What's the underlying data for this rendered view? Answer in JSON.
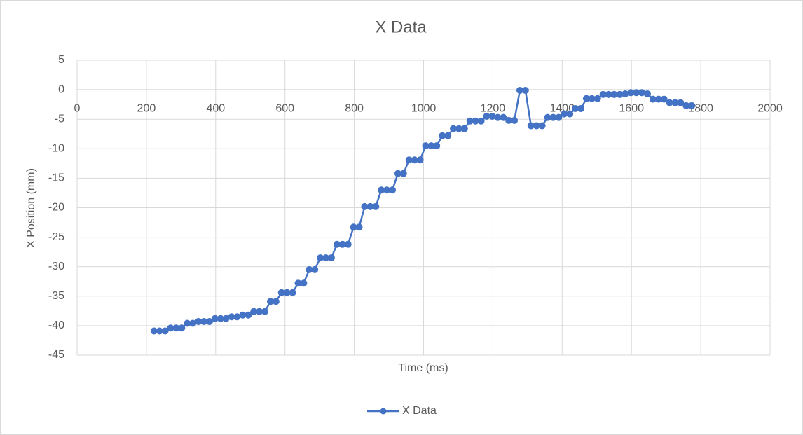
{
  "chart_data": {
    "type": "scatter-line",
    "title": "X Data",
    "x_label": "Time (ms)",
    "y_label": "X Position (mm)",
    "x": [
      222,
      238,
      254,
      270,
      286,
      302,
      318,
      334,
      350,
      366,
      382,
      398,
      414,
      430,
      446,
      462,
      478,
      494,
      510,
      526,
      542,
      558,
      574,
      590,
      606,
      622,
      638,
      654,
      670,
      686,
      702,
      718,
      734,
      750,
      766,
      782,
      798,
      814,
      830,
      846,
      862,
      878,
      894,
      910,
      926,
      942,
      958,
      974,
      990,
      1006,
      1022,
      1038,
      1054,
      1070,
      1086,
      1102,
      1118,
      1134,
      1150,
      1166,
      1182,
      1198,
      1214,
      1230,
      1246,
      1262,
      1278,
      1294,
      1310,
      1326,
      1342,
      1358,
      1374,
      1390,
      1406,
      1422,
      1438,
      1454,
      1470,
      1486,
      1502,
      1518,
      1534,
      1550,
      1566,
      1582,
      1598,
      1614,
      1630,
      1646,
      1662,
      1678,
      1694,
      1710,
      1726,
      1742,
      1758,
      1774
    ],
    "series": [
      {
        "name": "X Data",
        "color": "#4472c4",
        "values": [
          -40.9,
          -40.9,
          -40.9,
          -40.4,
          -40.4,
          -40.4,
          -39.6,
          -39.6,
          -39.3,
          -39.3,
          -39.3,
          -38.8,
          -38.8,
          -38.8,
          -38.5,
          -38.5,
          -38.2,
          -38.2,
          -37.6,
          -37.6,
          -37.6,
          -35.9,
          -35.9,
          -34.4,
          -34.4,
          -34.4,
          -32.8,
          -32.8,
          -30.5,
          -30.5,
          -28.5,
          -28.5,
          -28.5,
          -26.2,
          -26.2,
          -26.2,
          -23.3,
          -23.3,
          -19.8,
          -19.8,
          -19.8,
          -17,
          -17,
          -17,
          -14.2,
          -14.2,
          -11.9,
          -11.9,
          -11.9,
          -9.5,
          -9.5,
          -9.5,
          -7.8,
          -7.8,
          -6.6,
          -6.6,
          -6.6,
          -5.3,
          -5.3,
          -5.3,
          -4.5,
          -4.5,
          -4.7,
          -4.7,
          -5.2,
          -5.2,
          -0.1,
          -0.1,
          -6.1,
          -6.1,
          -6.1,
          -4.7,
          -4.7,
          -4.7,
          -4.1,
          -4.1,
          -3.2,
          -3.2,
          -1.5,
          -1.5,
          -1.5,
          -0.8,
          -0.8,
          -0.8,
          -0.8,
          -0.7,
          -0.5,
          -0.5,
          -0.5,
          -0.7,
          -1.6,
          -1.6,
          -1.6,
          -2.2,
          -2.2,
          -2.2,
          -2.7,
          -2.7
        ]
      }
    ],
    "xlim": [
      0,
      2000
    ],
    "xticks": [
      0,
      200,
      400,
      600,
      800,
      1000,
      1200,
      1400,
      1600,
      1800,
      2000
    ],
    "ylim": [
      -45,
      5
    ],
    "yticks": [
      5,
      0,
      -5,
      -10,
      -15,
      -20,
      -25,
      -30,
      -35,
      -40,
      -45
    ],
    "grid": true,
    "legend": "bottom"
  }
}
